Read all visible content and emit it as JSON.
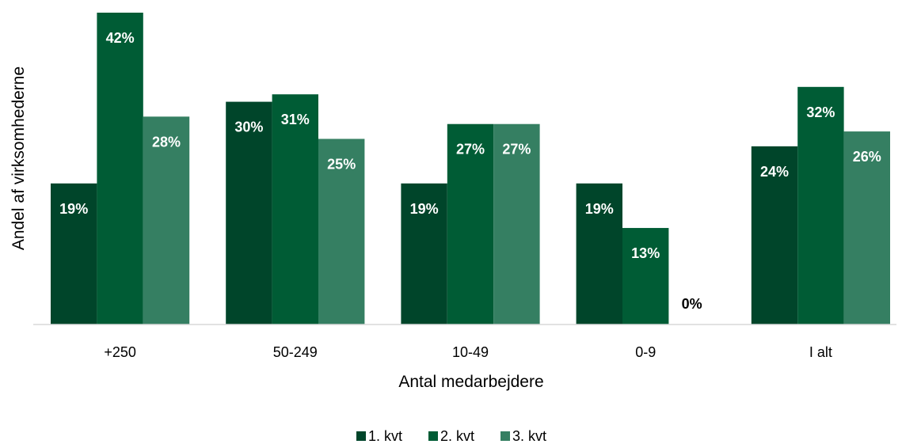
{
  "chart_data": {
    "type": "bar",
    "title": "",
    "xlabel": "Antal medarbejdere",
    "ylabel": "Andel af virksomhederne",
    "categories": [
      "+250",
      "50-249",
      "10-49",
      "0-9",
      "I alt"
    ],
    "series": [
      {
        "name": "1. kvt",
        "values": [
          19,
          30,
          19,
          19,
          24
        ],
        "labels": [
          "19%",
          "30%",
          "19%",
          "19%",
          "24%"
        ]
      },
      {
        "name": "2. kvt",
        "values": [
          42,
          31,
          27,
          13,
          32
        ],
        "labels": [
          "42%",
          "31%",
          "27%",
          "13%",
          "32%"
        ]
      },
      {
        "name": "3. kvt",
        "values": [
          28,
          25,
          27,
          0,
          26
        ],
        "labels": [
          "28%",
          "25%",
          "27%",
          "0%",
          "26%"
        ]
      }
    ],
    "ylim": [
      0,
      42
    ],
    "grid": false,
    "legend": "bottom-center",
    "colors": [
      "#00452a",
      "#005c35",
      "#357f62"
    ]
  }
}
